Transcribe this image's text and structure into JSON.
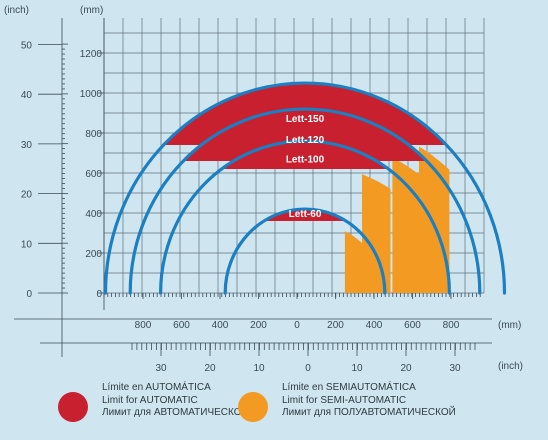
{
  "units": {
    "inch": "(inch)",
    "mm": "(mm)"
  },
  "colors": {
    "background": "#cfe6f1",
    "grid": "#3a4a55",
    "arc": "#1b7fc2",
    "auto": "#c8202f",
    "semi": "#f39a22"
  },
  "chart_data": {
    "type": "diagram",
    "left_inch_ticks": [
      "0",
      "10",
      "20",
      "30",
      "40",
      "50"
    ],
    "left_mm_ticks": [
      "0",
      "200",
      "400",
      "600",
      "800",
      "1000",
      "1200"
    ],
    "bottom_mm_ticks": [
      "800",
      "600",
      "400",
      "200",
      "0",
      "200",
      "400",
      "600",
      "800"
    ],
    "bottom_inch_ticks": [
      "30",
      "20",
      "10",
      "0",
      "10",
      "20",
      "30"
    ],
    "models": [
      {
        "label": "Lett-150",
        "auto_height": 740,
        "arc_radius": 1050,
        "semi_x_range": [
          600,
          760
        ]
      },
      {
        "label": "Lett-120",
        "auto_height": 660,
        "arc_radius": 920,
        "semi_x_range": [
          460,
          600
        ]
      },
      {
        "label": "Lett-100",
        "auto_height": 620,
        "arc_radius": 760,
        "semi_x_range": [
          300,
          450
        ]
      },
      {
        "label": "Lett-60",
        "auto_height": 360,
        "arc_radius": 420,
        "semi_x_range": [
          210,
          300
        ]
      }
    ]
  },
  "legend": {
    "automatic": [
      "Límite en AUTOMÁTICA",
      "Limit for AUTOMATIC",
      "Лимит для АВТОМАТИЧЕСКОЙ"
    ],
    "semi": [
      "Límite en SEMIAUTOMÁTICA",
      "Limit for SEMI-AUTOMATIC",
      "Лимит для ПОЛУАВТОМАТИЧЕСКОЙ"
    ]
  }
}
